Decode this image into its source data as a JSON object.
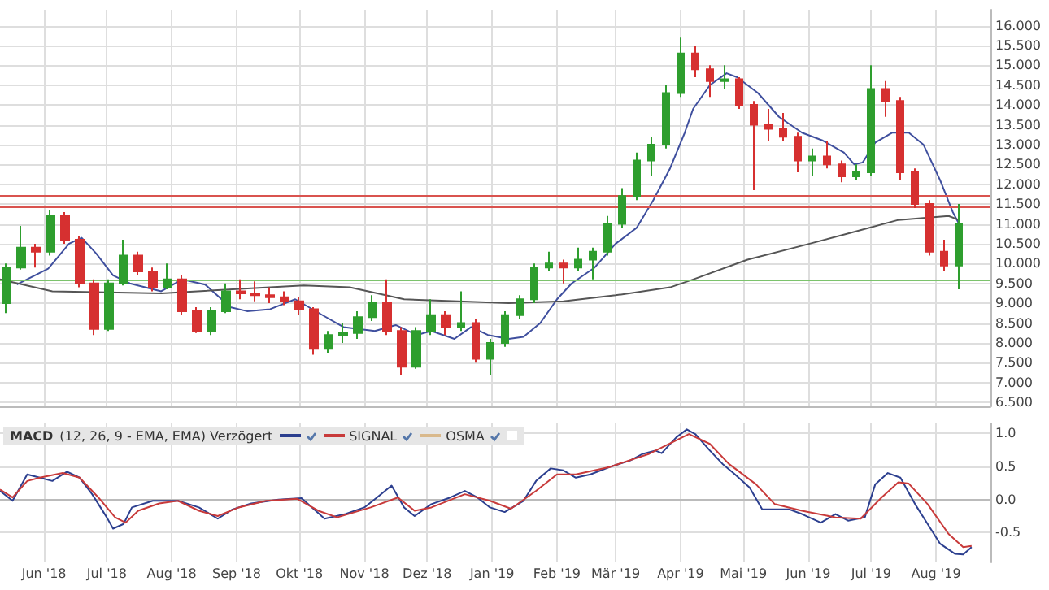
{
  "chart_data": [
    {
      "type": "candlestick",
      "tick_labels": "y",
      "grid": true,
      "marker": "none",
      "x": [
        "2018-05-14",
        "2018-05-21",
        "2018-05-28",
        "2018-06-04",
        "2018-06-11",
        "2018-06-18",
        "2018-06-25",
        "2018-07-02",
        "2018-07-09",
        "2018-07-16",
        "2018-07-23",
        "2018-07-30",
        "2018-08-06",
        "2018-08-13",
        "2018-08-20",
        "2018-08-27",
        "2018-09-03",
        "2018-09-10",
        "2018-09-17",
        "2018-09-24",
        "2018-10-01",
        "2018-10-08",
        "2018-10-15",
        "2018-10-22",
        "2018-10-29",
        "2018-11-05",
        "2018-11-12",
        "2018-11-19",
        "2018-11-26",
        "2018-12-03",
        "2018-12-10",
        "2018-12-17",
        "2018-12-24",
        "2018-12-31",
        "2019-01-07",
        "2019-01-14",
        "2019-01-21",
        "2019-01-28",
        "2019-02-04",
        "2019-02-11",
        "2019-02-18",
        "2019-02-25",
        "2019-03-04",
        "2019-03-11",
        "2019-03-18",
        "2019-03-25",
        "2019-04-01",
        "2019-04-08",
        "2019-04-15",
        "2019-04-22",
        "2019-04-29",
        "2019-05-06",
        "2019-05-13",
        "2019-05-20",
        "2019-05-27",
        "2019-06-03",
        "2019-06-10",
        "2019-06-17",
        "2019-06-24",
        "2019-07-01",
        "2019-07-08",
        "2019-07-15",
        "2019-07-22",
        "2019-07-29",
        "2019-08-05",
        "2019-08-12"
      ],
      "ohlc": [
        [
          9.0,
          10.0,
          8.75,
          9.9
        ],
        [
          9.9,
          10.95,
          9.85,
          10.4
        ],
        [
          10.4,
          10.5,
          9.9,
          10.3
        ],
        [
          10.3,
          11.35,
          10.2,
          11.2
        ],
        [
          11.2,
          11.3,
          10.5,
          10.6
        ],
        [
          10.6,
          10.7,
          9.4,
          9.5
        ],
        [
          9.5,
          9.6,
          8.2,
          8.35
        ],
        [
          8.35,
          9.6,
          8.3,
          9.5
        ],
        [
          9.5,
          10.6,
          9.45,
          10.2
        ],
        [
          10.2,
          10.3,
          9.7,
          9.8
        ],
        [
          9.8,
          9.9,
          9.3,
          9.4
        ],
        [
          9.4,
          10.0,
          9.35,
          9.6
        ],
        [
          9.6,
          9.7,
          8.7,
          8.8
        ],
        [
          8.8,
          8.9,
          8.25,
          8.3
        ],
        [
          8.3,
          8.9,
          8.2,
          8.8
        ],
        [
          8.8,
          9.5,
          8.75,
          9.3
        ],
        [
          9.3,
          9.6,
          9.1,
          9.25
        ],
        [
          9.25,
          9.55,
          9.05,
          9.2
        ],
        [
          9.2,
          9.4,
          9.0,
          9.15
        ],
        [
          9.15,
          9.3,
          8.95,
          9.05
        ],
        [
          9.05,
          9.15,
          8.7,
          8.85
        ],
        [
          8.85,
          8.9,
          7.7,
          7.85
        ],
        [
          7.85,
          8.3,
          7.75,
          8.2
        ],
        [
          8.2,
          8.5,
          8.0,
          8.25
        ],
        [
          8.25,
          8.8,
          8.1,
          8.65
        ],
        [
          8.65,
          9.2,
          8.55,
          9.0
        ],
        [
          9.0,
          9.6,
          8.2,
          8.3
        ],
        [
          8.3,
          8.4,
          7.2,
          7.4
        ],
        [
          7.4,
          8.4,
          7.35,
          8.3
        ],
        [
          8.3,
          9.1,
          8.2,
          8.7
        ],
        [
          8.7,
          8.8,
          8.2,
          8.4
        ],
        [
          8.4,
          9.3,
          8.3,
          8.5
        ],
        [
          8.5,
          8.6,
          7.5,
          7.6
        ],
        [
          7.6,
          8.1,
          7.2,
          8.0
        ],
        [
          8.0,
          8.8,
          7.9,
          8.7
        ],
        [
          8.7,
          9.2,
          8.6,
          9.1
        ],
        [
          9.1,
          10.0,
          9.0,
          9.9
        ],
        [
          9.9,
          10.3,
          9.8,
          10.0
        ],
        [
          10.0,
          10.1,
          9.5,
          9.9
        ],
        [
          9.9,
          10.4,
          9.8,
          10.1
        ],
        [
          10.1,
          10.4,
          9.6,
          10.3
        ],
        [
          10.3,
          11.2,
          10.2,
          11.0
        ],
        [
          11.0,
          11.9,
          10.9,
          11.7
        ],
        [
          11.7,
          12.8,
          11.6,
          12.6
        ],
        [
          12.6,
          13.2,
          12.2,
          13.0
        ],
        [
          13.0,
          14.5,
          12.9,
          14.3
        ],
        [
          14.3,
          15.7,
          14.2,
          15.3
        ],
        [
          15.3,
          15.5,
          14.7,
          14.9
        ],
        [
          14.9,
          15.0,
          14.2,
          14.6
        ],
        [
          14.6,
          15.0,
          14.4,
          14.65
        ],
        [
          14.65,
          14.7,
          13.9,
          14.0
        ],
        [
          14.0,
          14.1,
          11.85,
          13.5
        ],
        [
          13.5,
          13.9,
          13.1,
          13.4
        ],
        [
          13.4,
          13.8,
          13.1,
          13.2
        ],
        [
          13.2,
          13.3,
          12.3,
          12.6
        ],
        [
          12.6,
          12.9,
          12.2,
          12.7
        ],
        [
          12.7,
          13.1,
          12.4,
          12.5
        ],
        [
          12.5,
          12.6,
          12.05,
          12.2
        ],
        [
          12.2,
          12.5,
          12.1,
          12.3
        ],
        [
          12.3,
          15.0,
          12.2,
          14.4
        ],
        [
          14.4,
          14.6,
          13.7,
          14.1
        ],
        [
          14.1,
          14.2,
          12.1,
          12.3
        ],
        [
          12.3,
          12.4,
          11.4,
          11.5
        ],
        [
          11.5,
          11.6,
          10.2,
          10.3
        ],
        [
          10.3,
          10.6,
          9.8,
          9.95
        ],
        [
          9.95,
          11.5,
          9.35,
          11.0
        ]
      ],
      "colors": [
        "#2e9e2e",
        "#2e9e2e",
        "#d63030",
        "#2e9e2e",
        "#d63030",
        "#d63030",
        "#d63030",
        "#2e9e2e",
        "#2e9e2e",
        "#d63030",
        "#d63030",
        "#2e9e2e",
        "#d63030",
        "#d63030",
        "#2e9e2e",
        "#2e9e2e",
        "#d63030",
        "#d63030",
        "#d63030",
        "#d63030",
        "#d63030",
        "#d63030",
        "#2e9e2e",
        "#2e9e2e",
        "#2e9e2e",
        "#2e9e2e",
        "#d63030",
        "#d63030",
        "#2e9e2e",
        "#2e9e2e",
        "#d63030",
        "#2e9e2e",
        "#d63030",
        "#2e9e2e",
        "#2e9e2e",
        "#2e9e2e",
        "#2e9e2e",
        "#2e9e2e",
        "#d63030",
        "#2e9e2e",
        "#2e9e2e",
        "#2e9e2e",
        "#2e9e2e",
        "#2e9e2e",
        "#2e9e2e",
        "#2e9e2e",
        "#2e9e2e",
        "#d63030",
        "#d63030",
        "#2e9e2e",
        "#d63030",
        "#d63030",
        "#d63030",
        "#d63030",
        "#d63030",
        "#2e9e2e",
        "#d63030",
        "#d63030",
        "#2e9e2e",
        "#2e9e2e",
        "#d63030",
        "#d63030",
        "#d63030",
        "#d63030",
        "#d63030",
        "#2e9e2e"
      ],
      "series": [
        {
          "type": "line",
          "color": "#3f4f9e",
          "x": [
            "2018-05-19",
            "2018-06-03",
            "2018-06-13",
            "2018-06-19",
            "2018-06-26",
            "2018-07-04",
            "2018-07-12",
            "2018-07-27",
            "2018-08-06",
            "2018-08-17",
            "2018-08-29",
            "2018-09-06",
            "2018-09-17",
            "2018-09-29",
            "2018-10-12",
            "2018-10-22",
            "2018-11-06",
            "2018-11-16",
            "2018-11-26",
            "2018-12-03",
            "2018-12-14",
            "2018-12-22",
            "2018-12-30",
            "2019-01-09",
            "2019-01-16",
            "2019-01-24",
            "2019-02-01",
            "2019-02-08",
            "2019-02-19",
            "2019-03-01",
            "2019-03-11",
            "2019-03-19",
            "2019-03-27",
            "2019-04-03",
            "2019-04-07",
            "2019-04-15",
            "2019-04-23",
            "2019-04-28",
            "2019-05-08",
            "2019-05-18",
            "2019-05-29",
            "2019-06-08",
            "2019-06-18",
            "2019-06-23",
            "2019-06-27",
            "2019-07-03",
            "2019-07-11",
            "2019-07-19",
            "2019-07-26",
            "2019-08-03",
            "2019-08-09",
            "2019-08-12"
          ],
          "values": [
            9.47,
            9.87,
            10.5,
            10.65,
            10.25,
            9.7,
            9.5,
            9.3,
            9.6,
            9.47,
            8.9,
            8.8,
            8.85,
            9.1,
            8.7,
            8.4,
            8.3,
            8.45,
            8.2,
            8.3,
            8.1,
            8.4,
            8.2,
            8.1,
            8.15,
            8.5,
            9.1,
            9.5,
            9.9,
            10.5,
            10.9,
            11.6,
            12.4,
            13.3,
            13.9,
            14.5,
            14.8,
            14.7,
            14.3,
            13.7,
            13.3,
            13.1,
            12.8,
            12.5,
            12.55,
            13.05,
            13.3,
            13.3,
            13.0,
            12.1,
            11.3,
            11.0
          ]
        },
        {
          "type": "line",
          "color": "#555555",
          "x": [
            "2018-05-11",
            "2018-06-05",
            "2018-07-27",
            "2018-10-03",
            "2018-10-25",
            "2018-11-20",
            "2019-01-09",
            "2019-02-04",
            "2019-03-01",
            "2019-03-27",
            "2019-04-07",
            "2019-05-03",
            "2019-05-29",
            "2019-06-23",
            "2019-07-14",
            "2019-08-07",
            "2019-08-12"
          ],
          "values": [
            9.6,
            9.3,
            9.25,
            9.45,
            9.4,
            9.1,
            9.0,
            9.05,
            9.2,
            9.4,
            9.6,
            10.1,
            10.45,
            10.8,
            11.1,
            11.2,
            11.1
          ]
        }
      ],
      "ref_lines": [
        {
          "axis": "y",
          "value": 11.7,
          "color": "#d9534f"
        },
        {
          "axis": "y",
          "value": 11.45,
          "color": "#d9534f"
        },
        {
          "axis": "y",
          "value": 9.6,
          "color": "#7cc36c"
        }
      ],
      "xlim": [
        "2018-05-11",
        "2019-08-27"
      ],
      "xticks": [
        {
          "value": "2018-06-01",
          "label": null
        },
        {
          "value": "2018-07-01",
          "label": null
        },
        {
          "value": "2018-08-01",
          "label": null
        },
        {
          "value": "2018-09-01",
          "label": null
        },
        {
          "value": "2018-10-01",
          "label": null
        },
        {
          "value": "2018-11-01",
          "label": null
        },
        {
          "value": "2018-12-01",
          "label": null
        },
        {
          "value": "2019-01-01",
          "label": null
        },
        {
          "value": "2019-02-01",
          "label": null
        },
        {
          "value": "2019-03-01",
          "label": null
        },
        {
          "value": "2019-04-01",
          "label": null
        },
        {
          "value": "2019-05-01",
          "label": null
        },
        {
          "value": "2019-06-01",
          "label": null
        },
        {
          "value": "2019-07-01",
          "label": null
        },
        {
          "value": "2019-08-01",
          "label": null
        }
      ],
      "ylim": [
        6.4,
        16.4
      ],
      "yticks": [
        {
          "value": 6.5,
          "label": "6.500"
        },
        {
          "value": 7,
          "label": "7.000"
        },
        {
          "value": 7.5,
          "label": "7.500"
        },
        {
          "value": 8,
          "label": "8.000"
        },
        {
          "value": 8.5,
          "label": "8.500"
        },
        {
          "value": 9,
          "label": "9.000"
        },
        {
          "value": 9.5,
          "label": "9.500"
        },
        {
          "value": 10,
          "label": "10.000"
        },
        {
          "value": 10.5,
          "label": "10.500"
        },
        {
          "value": 11,
          "label": "11.000"
        },
        {
          "value": 11.5,
          "label": "11.500"
        },
        {
          "value": 12,
          "label": "12.000"
        },
        {
          "value": 12.5,
          "label": "12.500"
        },
        {
          "value": 13,
          "label": "13.000"
        },
        {
          "value": 13.5,
          "label": "13.500"
        },
        {
          "value": 14,
          "label": "14.000"
        },
        {
          "value": 14.5,
          "label": "14.500"
        },
        {
          "value": 15,
          "label": "15.000"
        },
        {
          "value": 15.5,
          "label": "15.500"
        },
        {
          "value": 16,
          "label": "16.000"
        }
      ]
    },
    {
      "type": "line",
      "title": "MACD",
      "subtitle": "(12, 26, 9 - EMA, EMA) Verzögert",
      "legend": "top left",
      "grid": true,
      "marker": "none",
      "series": [
        {
          "color": "#2c3f8f",
          "x": [
            "2018-05-11",
            "2018-05-17",
            "2018-05-24",
            "2018-05-30",
            "2018-06-05",
            "2018-06-12",
            "2018-06-18",
            "2018-06-24",
            "2018-07-01",
            "2018-07-04",
            "2018-07-09",
            "2018-07-13",
            "2018-07-23",
            "2018-08-04",
            "2018-08-14",
            "2018-08-23",
            "2018-08-30",
            "2018-09-08",
            "2018-09-21",
            "2018-10-02",
            "2018-10-13",
            "2018-10-23",
            "2018-11-01",
            "2018-11-07",
            "2018-11-14",
            "2018-11-20",
            "2018-11-25",
            "2018-12-03",
            "2018-12-12",
            "2018-12-19",
            "2018-12-25",
            "2018-12-31",
            "2019-01-07",
            "2019-01-16",
            "2019-01-22",
            "2019-01-29",
            "2019-02-04",
            "2019-02-10",
            "2019-02-17",
            "2019-02-26",
            "2019-03-08",
            "2019-03-14",
            "2019-03-20",
            "2019-03-23",
            "2019-03-30",
            "2019-04-04",
            "2019-04-08",
            "2019-04-15",
            "2019-04-21",
            "2019-04-27",
            "2019-05-04",
            "2019-05-10",
            "2019-05-23",
            "2019-05-29",
            "2019-06-07",
            "2019-06-14",
            "2019-06-20",
            "2019-06-28",
            "2019-07-03",
            "2019-07-09",
            "2019-07-15",
            "2019-07-22",
            "2019-07-28",
            "2019-08-03",
            "2019-08-10",
            "2019-08-14",
            "2019-08-18"
          ],
          "values": [
            0.13,
            -0.02,
            0.38,
            0.33,
            0.28,
            0.42,
            0.33,
            0.08,
            -0.27,
            -0.44,
            -0.37,
            -0.12,
            -0.02,
            -0.02,
            -0.12,
            -0.29,
            -0.15,
            -0.06,
            0,
            0.02,
            -0.29,
            -0.22,
            -0.12,
            0.03,
            0.21,
            -0.12,
            -0.25,
            -0.07,
            0.03,
            0.13,
            0.03,
            -0.12,
            -0.19,
            -0.02,
            0.28,
            0.47,
            0.44,
            0.33,
            0.38,
            0.49,
            0.59,
            0.69,
            0.74,
            0.7,
            0.94,
            1.06,
            0.99,
            0.74,
            0.54,
            0.38,
            0.18,
            -0.15,
            -0.15,
            -0.22,
            -0.35,
            -0.22,
            -0.32,
            -0.27,
            0.23,
            0.4,
            0.33,
            -0.07,
            -0.37,
            -0.67,
            -0.82,
            -0.83,
            -0.72
          ]
        },
        {
          "name": "SIGNAL",
          "color": "#c83a3a",
          "x": [
            "2018-05-11",
            "2018-05-17",
            "2018-05-24",
            "2018-05-30",
            "2018-06-10",
            "2018-06-18",
            "2018-06-27",
            "2018-07-05",
            "2018-07-10",
            "2018-07-16",
            "2018-07-26",
            "2018-08-04",
            "2018-08-14",
            "2018-08-23",
            "2018-09-02",
            "2018-09-15",
            "2018-09-30",
            "2018-10-10",
            "2018-10-19",
            "2018-11-04",
            "2018-11-17",
            "2018-11-25",
            "2018-12-03",
            "2018-12-19",
            "2018-12-31",
            "2019-01-10",
            "2019-01-22",
            "2019-02-01",
            "2019-02-10",
            "2019-02-26",
            "2019-03-17",
            "2019-04-05",
            "2019-04-15",
            "2019-04-24",
            "2019-05-07",
            "2019-05-16",
            "2019-05-29",
            "2019-06-14",
            "2019-06-26",
            "2019-07-06",
            "2019-07-14",
            "2019-07-19",
            "2019-07-28",
            "2019-08-07",
            "2019-08-14",
            "2019-08-18"
          ],
          "values": [
            0.15,
            0.03,
            0.28,
            0.33,
            0.4,
            0.33,
            0.03,
            -0.27,
            -0.35,
            -0.17,
            -0.06,
            -0.02,
            -0.17,
            -0.25,
            -0.12,
            -0.02,
            0.01,
            -0.17,
            -0.27,
            -0.12,
            0.03,
            -0.17,
            -0.12,
            0.08,
            -0.02,
            -0.14,
            0.13,
            0.38,
            0.38,
            0.49,
            0.69,
            0.99,
            0.84,
            0.54,
            0.23,
            -0.07,
            -0.17,
            -0.27,
            -0.29,
            0.03,
            0.26,
            0.24,
            -0.07,
            -0.52,
            -0.72,
            -0.7
          ]
        },
        {
          "name": "OSMA",
          "color": "#d9b98c"
        }
      ],
      "xlim": [
        "2018-05-11",
        "2019-08-27"
      ],
      "xticks": [
        {
          "value": "2018-06-01",
          "label": "Jun '18"
        },
        {
          "value": "2018-07-01",
          "label": "Jul '18"
        },
        {
          "value": "2018-08-01",
          "label": "Aug '18"
        },
        {
          "value": "2018-09-01",
          "label": "Sep '18"
        },
        {
          "value": "2018-10-01",
          "label": "Okt '18"
        },
        {
          "value": "2018-11-01",
          "label": "Nov '18"
        },
        {
          "value": "2018-12-01",
          "label": "Dez '18"
        },
        {
          "value": "2019-01-01",
          "label": "Jan '19"
        },
        {
          "value": "2019-02-01",
          "label": "Feb '19"
        },
        {
          "value": "2019-03-01",
          "label": "Mär '19"
        },
        {
          "value": "2019-04-01",
          "label": "Apr '19"
        },
        {
          "value": "2019-05-01",
          "label": "Mai '19"
        },
        {
          "value": "2019-06-01",
          "label": "Jun '19"
        },
        {
          "value": "2019-07-01",
          "label": "Jul '19"
        },
        {
          "value": "2019-08-01",
          "label": "Aug '19"
        }
      ],
      "ylim": [
        -0.95,
        1.15
      ],
      "yticks": [
        {
          "value": -0.5,
          "label": "-0.5"
        },
        {
          "value": 0,
          "label": "0.0"
        },
        {
          "value": 0.5,
          "label": "0.5"
        },
        {
          "value": 1,
          "label": "1.0"
        }
      ]
    }
  ]
}
